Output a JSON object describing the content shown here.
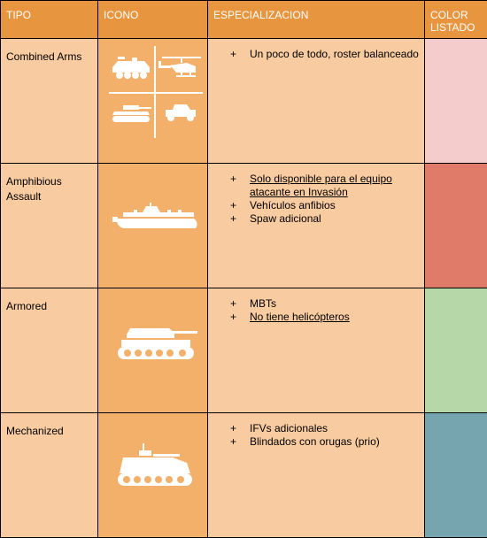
{
  "headers": {
    "tipo": "TIPO",
    "icono": "ICONO",
    "especializacion": "ESPECIALIZACION",
    "color": "COLOR\nLISTADO"
  },
  "rows": [
    {
      "tipo": "Combined Arms",
      "icon": "combined-arms-icon",
      "items": [
        {
          "text": "Un poco de todo, roster balanceado",
          "underline": false
        }
      ],
      "color": "#f4cccc"
    },
    {
      "tipo": "Amphibious Assault",
      "icon": "assault-boat-icon",
      "items": [
        {
          "text": "Solo disponible para el equipo atacante en Invasión",
          "underline": true
        },
        {
          "text": "Vehículos anfibios",
          "underline": false
        },
        {
          "text": "Spaw adicional",
          "underline": false
        }
      ],
      "color": "#e07b6a"
    },
    {
      "tipo": "Armored",
      "icon": "tank-icon",
      "items": [
        {
          "text": "MBTs",
          "underline": false
        },
        {
          "text": "No tiene helicópteros",
          "underline": true
        }
      ],
      "color": "#b6d7a8"
    },
    {
      "tipo": "Mechanized",
      "icon": "ifv-icon",
      "items": [
        {
          "text": "IFVs adicionales",
          "underline": false
        },
        {
          "text": "Blindados con orugas (prio)",
          "underline": false
        }
      ],
      "color": "#76a5af"
    }
  ]
}
